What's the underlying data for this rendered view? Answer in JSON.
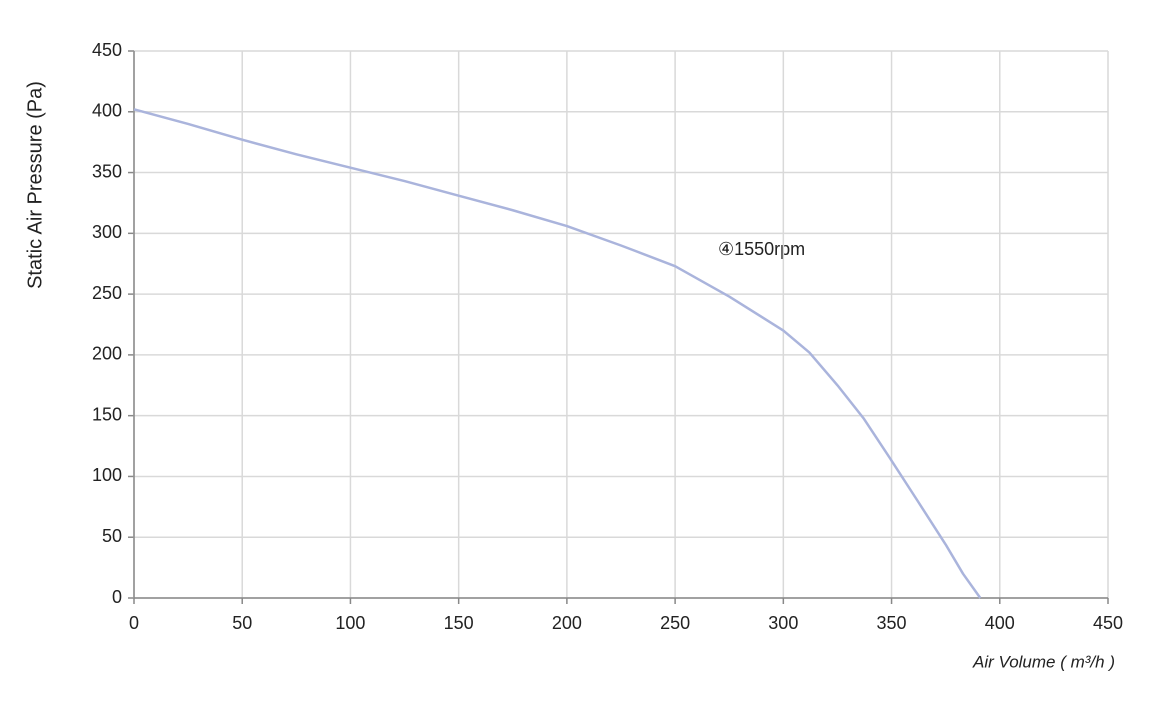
{
  "chart_data": {
    "type": "line",
    "x_label": "Air Volume ( m³/h )",
    "y_label": "Static Air Pressure  (Pa)",
    "annotation": "④1550rpm",
    "x": [
      0,
      25,
      50,
      75,
      100,
      125,
      150,
      175,
      200,
      225,
      250,
      275,
      300,
      312,
      325,
      337,
      350,
      362,
      375,
      383,
      391
    ],
    "series": [
      {
        "name": "1550rpm",
        "color": "#aab4dc",
        "values": [
          402,
          390,
          377,
          365,
          354,
          343,
          331,
          319,
          306,
          290,
          273,
          248,
          220,
          202,
          175,
          148,
          113,
          80,
          44,
          20,
          0
        ]
      }
    ],
    "xlim": [
      0,
      450
    ],
    "ylim": [
      0,
      450
    ],
    "xticks": [
      0,
      50,
      100,
      150,
      200,
      250,
      300,
      350,
      400,
      450
    ],
    "yticks": [
      0,
      50,
      100,
      150,
      200,
      250,
      300,
      350,
      400,
      450
    ],
    "grid": true
  }
}
